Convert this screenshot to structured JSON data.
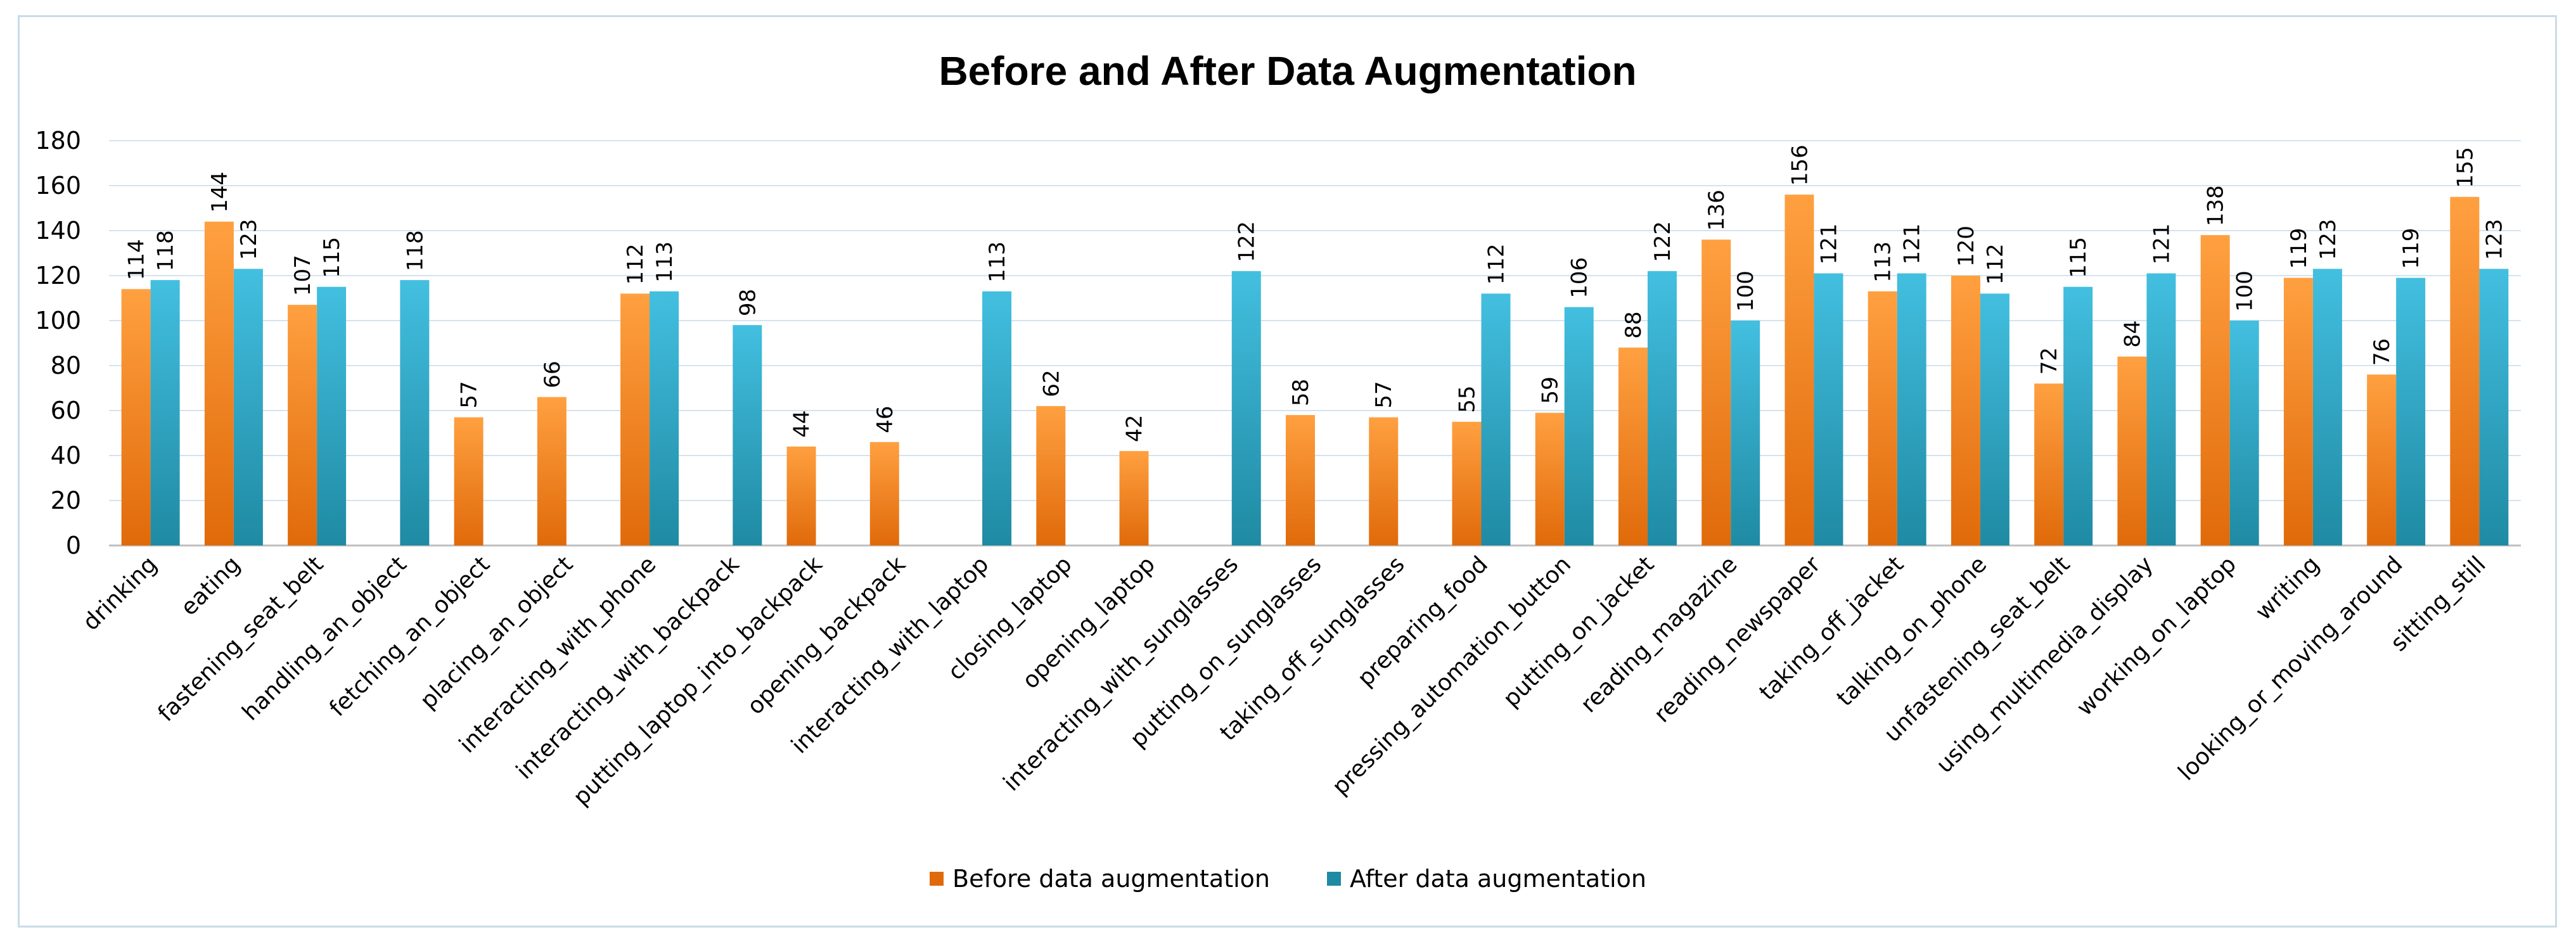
{
  "colors": {
    "before_top": "#ffa040",
    "before_bottom": "#e06a0a",
    "after_top": "#43bfe0",
    "after_bottom": "#1f8aa3"
  },
  "chart_data": {
    "type": "bar",
    "title": "Before and After Data Augmentation",
    "xlabel": "",
    "ylabel": "",
    "ylim": [
      0,
      180
    ],
    "yticks": [
      0,
      20,
      40,
      60,
      80,
      100,
      120,
      140,
      160,
      180
    ],
    "legend_position": "bottom",
    "categories": [
      "drinking",
      "eating",
      "fastening_seat_belt",
      "handling_an_object",
      "fetching_an_object",
      "placing_an_object",
      "interacting_with_phone",
      "interacting_with_backpack",
      "putting_laptop_into_backpack",
      "opening_backpack",
      "interacting_with_laptop",
      "closing_laptop",
      "opening_laptop",
      "interacting_with_sunglasses",
      "putting_on_sunglasses",
      "taking_off_sunglasses",
      "preparing_food",
      "pressing_automation_button",
      "putting_on_jacket",
      "reading_magazine",
      "reading_newspaper",
      "taking_off_jacket",
      "talking_on_phone",
      "unfastening_seat_belt",
      "using_multimedia_display",
      "working_on_laptop",
      "writing",
      "looking_or_moving_around",
      "sitting_still"
    ],
    "series": [
      {
        "name": "Before data augmentation",
        "values": [
          114,
          144,
          107,
          null,
          57,
          66,
          112,
          null,
          44,
          46,
          null,
          62,
          42,
          null,
          58,
          57,
          55,
          59,
          88,
          136,
          156,
          113,
          120,
          72,
          84,
          138,
          119,
          76,
          155
        ]
      },
      {
        "name": "After data augmentation",
        "values": [
          118,
          123,
          115,
          118,
          null,
          null,
          113,
          98,
          null,
          null,
          113,
          null,
          null,
          122,
          null,
          null,
          112,
          106,
          122,
          100,
          121,
          121,
          112,
          115,
          121,
          100,
          123,
          119,
          123
        ]
      }
    ]
  }
}
